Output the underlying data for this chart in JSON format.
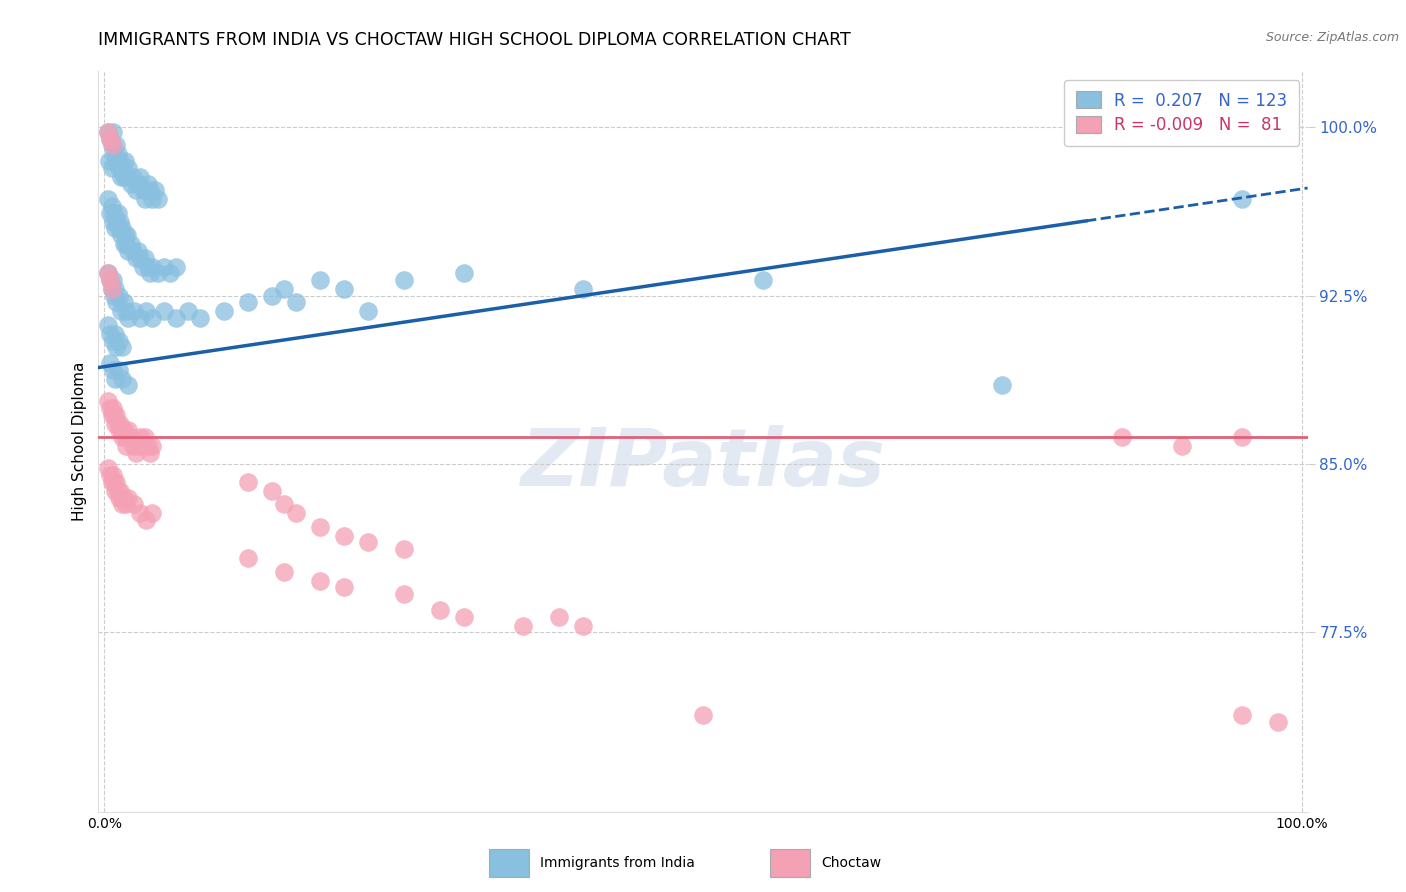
{
  "title": "IMMIGRANTS FROM INDIA VS CHOCTAW HIGH SCHOOL DIPLOMA CORRELATION CHART",
  "source": "Source: ZipAtlas.com",
  "ylabel": "High School Diploma",
  "R_blue": 0.207,
  "N_blue": 123,
  "R_pink": -0.009,
  "N_pink": 81,
  "yticks": [
    0.775,
    0.85,
    0.925,
    1.0
  ],
  "ytick_labels": [
    "77.5%",
    "85.0%",
    "92.5%",
    "100.0%"
  ],
  "ymin": 0.695,
  "ymax": 1.025,
  "xmin": -0.005,
  "xmax": 1.005,
  "watermark": "ZIPatlas",
  "blue_trend_start_y": 0.893,
  "blue_trend_end_y": 0.973,
  "pink_trend_y": 0.862,
  "blue_color": "#89bfdf",
  "pink_color": "#f4a0b5",
  "blue_line_color": "#1a5fa8",
  "pink_line_color": "#e0607a",
  "title_fontsize": 12.5,
  "axis_label_fontsize": 11,
  "tick_label_color": "#3366cc",
  "source_fontsize": 9,
  "blue_dots": [
    [
      0.003,
      0.998
    ],
    [
      0.005,
      0.995
    ],
    [
      0.006,
      0.992
    ],
    [
      0.007,
      0.998
    ],
    [
      0.004,
      0.985
    ],
    [
      0.006,
      0.982
    ],
    [
      0.008,
      0.988
    ],
    [
      0.009,
      0.985
    ],
    [
      0.01,
      0.992
    ],
    [
      0.011,
      0.988
    ],
    [
      0.012,
      0.982
    ],
    [
      0.013,
      0.985
    ],
    [
      0.014,
      0.978
    ],
    [
      0.015,
      0.982
    ],
    [
      0.016,
      0.978
    ],
    [
      0.017,
      0.985
    ],
    [
      0.018,
      0.978
    ],
    [
      0.02,
      0.982
    ],
    [
      0.022,
      0.975
    ],
    [
      0.024,
      0.978
    ],
    [
      0.026,
      0.972
    ],
    [
      0.028,
      0.975
    ],
    [
      0.03,
      0.978
    ],
    [
      0.032,
      0.972
    ],
    [
      0.034,
      0.968
    ],
    [
      0.036,
      0.975
    ],
    [
      0.038,
      0.972
    ],
    [
      0.04,
      0.968
    ],
    [
      0.042,
      0.972
    ],
    [
      0.045,
      0.968
    ],
    [
      0.003,
      0.968
    ],
    [
      0.005,
      0.962
    ],
    [
      0.006,
      0.965
    ],
    [
      0.007,
      0.958
    ],
    [
      0.008,
      0.962
    ],
    [
      0.009,
      0.955
    ],
    [
      0.01,
      0.958
    ],
    [
      0.011,
      0.962
    ],
    [
      0.012,
      0.955
    ],
    [
      0.013,
      0.958
    ],
    [
      0.014,
      0.952
    ],
    [
      0.015,
      0.955
    ],
    [
      0.016,
      0.948
    ],
    [
      0.017,
      0.952
    ],
    [
      0.018,
      0.948
    ],
    [
      0.019,
      0.952
    ],
    [
      0.02,
      0.945
    ],
    [
      0.022,
      0.948
    ],
    [
      0.024,
      0.945
    ],
    [
      0.026,
      0.942
    ],
    [
      0.028,
      0.945
    ],
    [
      0.03,
      0.942
    ],
    [
      0.032,
      0.938
    ],
    [
      0.034,
      0.942
    ],
    [
      0.036,
      0.938
    ],
    [
      0.038,
      0.935
    ],
    [
      0.04,
      0.938
    ],
    [
      0.045,
      0.935
    ],
    [
      0.05,
      0.938
    ],
    [
      0.055,
      0.935
    ],
    [
      0.06,
      0.938
    ],
    [
      0.003,
      0.935
    ],
    [
      0.005,
      0.932
    ],
    [
      0.006,
      0.928
    ],
    [
      0.007,
      0.932
    ],
    [
      0.008,
      0.925
    ],
    [
      0.009,
      0.928
    ],
    [
      0.01,
      0.922
    ],
    [
      0.012,
      0.925
    ],
    [
      0.014,
      0.918
    ],
    [
      0.016,
      0.922
    ],
    [
      0.018,
      0.918
    ],
    [
      0.02,
      0.915
    ],
    [
      0.025,
      0.918
    ],
    [
      0.03,
      0.915
    ],
    [
      0.035,
      0.918
    ],
    [
      0.04,
      0.915
    ],
    [
      0.05,
      0.918
    ],
    [
      0.06,
      0.915
    ],
    [
      0.07,
      0.918
    ],
    [
      0.08,
      0.915
    ],
    [
      0.1,
      0.918
    ],
    [
      0.12,
      0.922
    ],
    [
      0.15,
      0.928
    ],
    [
      0.18,
      0.932
    ],
    [
      0.2,
      0.928
    ],
    [
      0.25,
      0.932
    ],
    [
      0.3,
      0.935
    ],
    [
      0.003,
      0.912
    ],
    [
      0.005,
      0.908
    ],
    [
      0.007,
      0.905
    ],
    [
      0.009,
      0.908
    ],
    [
      0.01,
      0.902
    ],
    [
      0.012,
      0.905
    ],
    [
      0.015,
      0.902
    ],
    [
      0.005,
      0.895
    ],
    [
      0.007,
      0.892
    ],
    [
      0.009,
      0.888
    ],
    [
      0.012,
      0.892
    ],
    [
      0.015,
      0.888
    ],
    [
      0.02,
      0.885
    ],
    [
      0.14,
      0.925
    ],
    [
      0.16,
      0.922
    ],
    [
      0.22,
      0.918
    ],
    [
      0.4,
      0.928
    ],
    [
      0.55,
      0.932
    ],
    [
      0.75,
      0.885
    ],
    [
      0.95,
      0.968
    ]
  ],
  "pink_dots": [
    [
      0.003,
      0.998
    ],
    [
      0.005,
      0.995
    ],
    [
      0.007,
      0.992
    ],
    [
      0.003,
      0.935
    ],
    [
      0.005,
      0.932
    ],
    [
      0.006,
      0.928
    ],
    [
      0.003,
      0.878
    ],
    [
      0.005,
      0.875
    ],
    [
      0.006,
      0.872
    ],
    [
      0.007,
      0.875
    ],
    [
      0.008,
      0.872
    ],
    [
      0.009,
      0.868
    ],
    [
      0.01,
      0.872
    ],
    [
      0.011,
      0.868
    ],
    [
      0.012,
      0.865
    ],
    [
      0.013,
      0.868
    ],
    [
      0.014,
      0.865
    ],
    [
      0.015,
      0.862
    ],
    [
      0.016,
      0.865
    ],
    [
      0.017,
      0.862
    ],
    [
      0.018,
      0.858
    ],
    [
      0.019,
      0.862
    ],
    [
      0.02,
      0.865
    ],
    [
      0.022,
      0.862
    ],
    [
      0.024,
      0.858
    ],
    [
      0.026,
      0.855
    ],
    [
      0.028,
      0.858
    ],
    [
      0.03,
      0.862
    ],
    [
      0.032,
      0.858
    ],
    [
      0.034,
      0.862
    ],
    [
      0.036,
      0.858
    ],
    [
      0.038,
      0.855
    ],
    [
      0.04,
      0.858
    ],
    [
      0.003,
      0.848
    ],
    [
      0.005,
      0.845
    ],
    [
      0.006,
      0.842
    ],
    [
      0.007,
      0.845
    ],
    [
      0.008,
      0.842
    ],
    [
      0.009,
      0.838
    ],
    [
      0.01,
      0.842
    ],
    [
      0.011,
      0.838
    ],
    [
      0.012,
      0.835
    ],
    [
      0.013,
      0.838
    ],
    [
      0.014,
      0.835
    ],
    [
      0.015,
      0.832
    ],
    [
      0.016,
      0.835
    ],
    [
      0.018,
      0.832
    ],
    [
      0.02,
      0.835
    ],
    [
      0.025,
      0.832
    ],
    [
      0.03,
      0.828
    ],
    [
      0.035,
      0.825
    ],
    [
      0.04,
      0.828
    ],
    [
      0.12,
      0.842
    ],
    [
      0.14,
      0.838
    ],
    [
      0.15,
      0.832
    ],
    [
      0.16,
      0.828
    ],
    [
      0.18,
      0.822
    ],
    [
      0.2,
      0.818
    ],
    [
      0.22,
      0.815
    ],
    [
      0.25,
      0.812
    ],
    [
      0.12,
      0.808
    ],
    [
      0.15,
      0.802
    ],
    [
      0.18,
      0.798
    ],
    [
      0.2,
      0.795
    ],
    [
      0.25,
      0.792
    ],
    [
      0.28,
      0.785
    ],
    [
      0.3,
      0.782
    ],
    [
      0.35,
      0.778
    ],
    [
      0.38,
      0.782
    ],
    [
      0.4,
      0.778
    ],
    [
      0.5,
      0.738
    ],
    [
      0.85,
      0.862
    ],
    [
      0.9,
      0.858
    ],
    [
      0.95,
      0.862
    ],
    [
      0.95,
      0.738
    ],
    [
      0.98,
      0.735
    ]
  ]
}
